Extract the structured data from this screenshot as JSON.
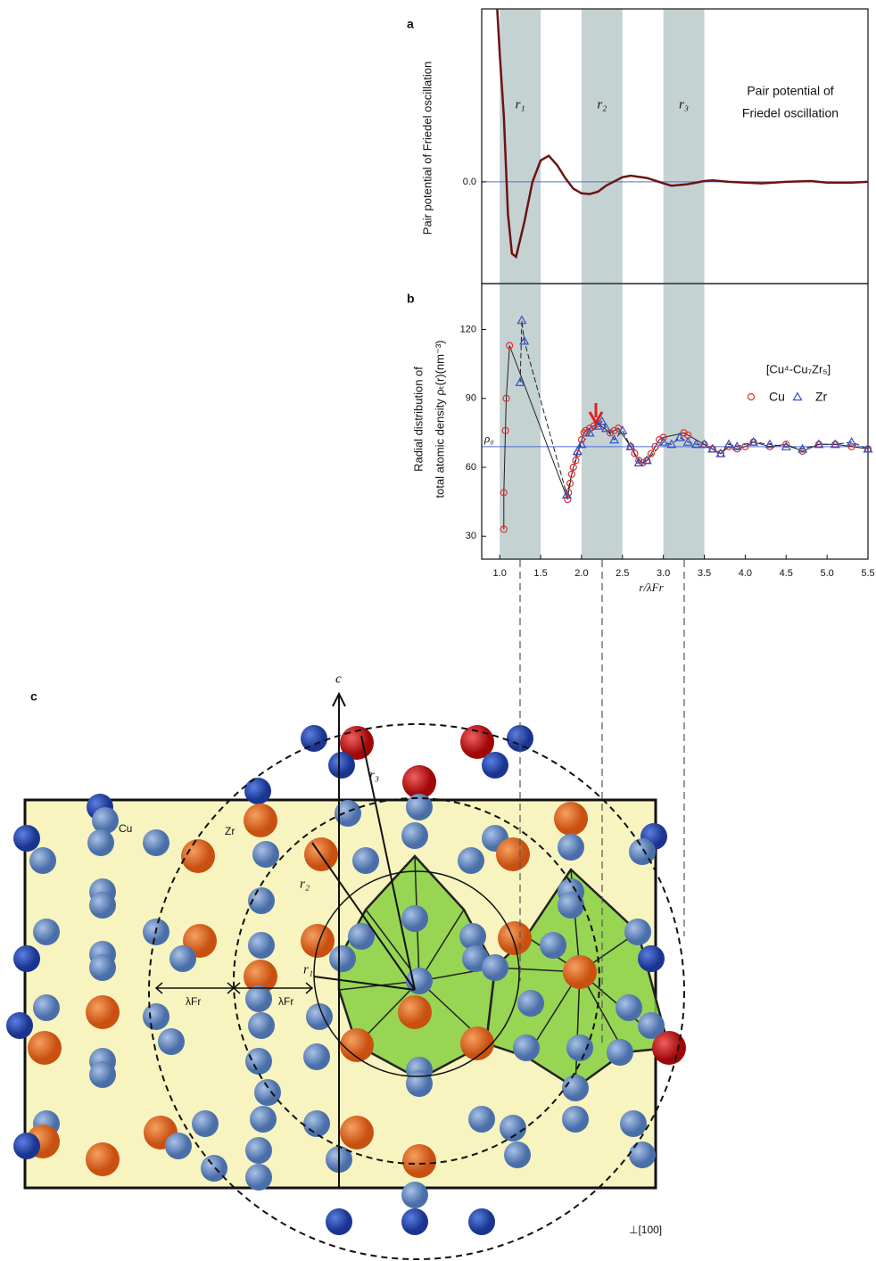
{
  "chart_data": [
    {
      "type": "line",
      "panel": "a",
      "ylabel": "Pair potential of Friedel oscillation",
      "annotation": [
        "Pair potential of",
        "Friedel oscillation"
      ],
      "color": "#6b1414",
      "x": [
        0.97,
        1.0,
        1.05,
        1.1,
        1.15,
        1.2,
        1.3,
        1.4,
        1.5,
        1.6,
        1.7,
        1.8,
        1.9,
        2.0,
        2.1,
        2.2,
        2.3,
        2.5,
        2.6,
        2.8,
        3.0,
        3.1,
        3.3,
        3.5,
        3.6,
        3.8,
        4.0,
        4.2,
        4.5,
        4.8,
        5.0,
        5.3,
        5.5
      ],
      "values": [
        2.26,
        1.67,
        0.86,
        -0.42,
        -0.94,
        -0.98,
        -0.53,
        0,
        0.28,
        0.34,
        0.22,
        0.05,
        -0.09,
        -0.15,
        -0.16,
        -0.13,
        -0.05,
        0.06,
        0.08,
        0.05,
        -0.02,
        -0.05,
        -0.03,
        0.01,
        0.02,
        0,
        -0.01,
        -0.02,
        0,
        0.01,
        -0.01,
        -0.01,
        0
      ],
      "xlim": [
        0.78,
        5.5
      ],
      "ylim": [
        -1.33,
        2.26
      ],
      "yticks": [
        {
          "value": 0,
          "label": "0.0"
        }
      ],
      "hline": 0,
      "bands": [
        {
          "range": [
            1.0,
            1.5
          ],
          "label": "r₁"
        },
        {
          "range": [
            2.0,
            2.5
          ],
          "label": "r₂"
        },
        {
          "range": [
            3.0,
            3.5
          ],
          "label": "r₃"
        }
      ]
    },
    {
      "type": "scatter",
      "panel": "b",
      "ylabel": [
        "Radial distribution of",
        "total atomic density ρₜ(r)(nm⁻³)"
      ],
      "xlabel": "r/λFr",
      "legend_title": "[Cu⁴-Cu₇Zr₅]",
      "hline": 69,
      "hline_label": "ρ₀",
      "xlim": [
        0.78,
        5.5
      ],
      "ylim": [
        20,
        140
      ],
      "xticks": [
        {
          "value": 1,
          "label": "1.0"
        },
        {
          "value": 1.5,
          "label": "1.5"
        },
        {
          "value": 2,
          "label": "2.0"
        },
        {
          "value": 2.5,
          "label": "2.5"
        },
        {
          "value": 3,
          "label": "3.0"
        },
        {
          "value": 3.5,
          "label": "3.5"
        },
        {
          "value": 4,
          "label": "4.0"
        },
        {
          "value": 4.5,
          "label": "4.5"
        },
        {
          "value": 5,
          "label": "5.0"
        },
        {
          "value": 5.5,
          "label": "5.5"
        }
      ],
      "yticks": [
        30,
        60,
        90,
        120
      ],
      "series": [
        {
          "name": "Cu",
          "color": "#e03030",
          "marker": "circle",
          "x": [
            1.05,
            1.05,
            1.07,
            1.08,
            1.12,
            1.83,
            1.84,
            1.86,
            1.88,
            1.9,
            1.93,
            1.95,
            2.0,
            2.03,
            2.05,
            2.1,
            2.15,
            2.2,
            2.35,
            2.4,
            2.45,
            2.6,
            2.65,
            2.7,
            2.75,
            2.8,
            2.85,
            2.9,
            2.95,
            3.0,
            3.25,
            3.3,
            3.5,
            3.6,
            3.7,
            3.8,
            3.9,
            4.0,
            4.1,
            4.3,
            4.5,
            4.7,
            4.9,
            5.1,
            5.3,
            5.5
          ],
          "values": [
            33,
            49,
            76,
            90,
            113,
            46,
            49,
            53,
            57,
            60,
            63,
            66,
            72,
            75,
            76,
            77,
            78,
            79,
            75,
            76,
            77,
            69,
            66,
            63,
            62,
            63,
            66,
            69,
            72,
            73,
            75,
            74,
            70,
            68,
            66,
            69,
            68,
            69,
            71,
            69,
            70,
            67,
            70,
            70,
            69,
            68
          ]
        },
        {
          "name": "Zr",
          "color": "#3050d0",
          "marker": "triangle",
          "x": [
            1.25,
            1.27,
            1.3,
            1.82,
            1.95,
            2.0,
            2.1,
            2.2,
            2.25,
            2.3,
            2.4,
            2.5,
            2.6,
            2.7,
            2.8,
            3.0,
            3.1,
            3.2,
            3.3,
            3.4,
            3.5,
            3.6,
            3.7,
            3.8,
            3.9,
            4.1,
            4.3,
            4.5,
            4.7,
            4.9,
            5.1,
            5.3,
            5.5
          ],
          "values": [
            97,
            124,
            115,
            48,
            67,
            70,
            75,
            78,
            80,
            77,
            72,
            76,
            69,
            62,
            63,
            71,
            70,
            73,
            71,
            70,
            70,
            68,
            66,
            70,
            69,
            71,
            70,
            69,
            68,
            70,
            70,
            71,
            68
          ]
        }
      ]
    }
  ],
  "diagram": {
    "panel": "c",
    "axis": "c",
    "cu": "Cu",
    "zr": "Zr",
    "r1": "r₁",
    "r2": "r₂",
    "r3": "r₃",
    "lambda": "λFr",
    "direction": "⊥[100]"
  }
}
